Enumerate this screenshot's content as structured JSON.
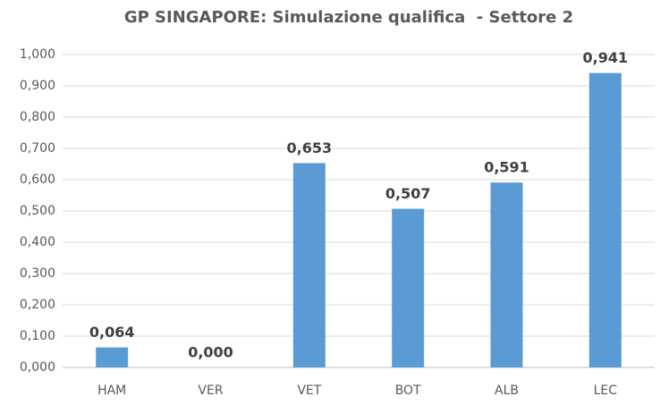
{
  "chart_data": {
    "type": "bar",
    "title": "GP SINGAPORE: Simulazione qualifica  - Settore 2",
    "categories": [
      "HAM",
      "VER",
      "VET",
      "BOT",
      "ALB",
      "LEC"
    ],
    "values": [
      0.064,
      0,
      0.653,
      0.507,
      0.591,
      0.941
    ],
    "value_labels": [
      "0,064",
      "0,000",
      "0,653",
      "0,507",
      "0,591",
      "0,941"
    ],
    "color": "#5b9bd5",
    "ylim": [
      0,
      1
    ],
    "yticks": [
      {
        "value": 0,
        "label": "0,000"
      },
      {
        "value": 0.1,
        "label": "0,100"
      },
      {
        "value": 0.2,
        "label": "0,200"
      },
      {
        "value": 0.3,
        "label": "0,300"
      },
      {
        "value": 0.4,
        "label": "0,400"
      },
      {
        "value": 0.5,
        "label": "0,500"
      },
      {
        "value": 0.6,
        "label": "0,600"
      },
      {
        "value": 0.7,
        "label": "0,700"
      },
      {
        "value": 0.8,
        "label": "0,800"
      },
      {
        "value": 0.9,
        "label": "0,900"
      },
      {
        "value": 1,
        "label": "1,000"
      }
    ],
    "grid": true
  }
}
